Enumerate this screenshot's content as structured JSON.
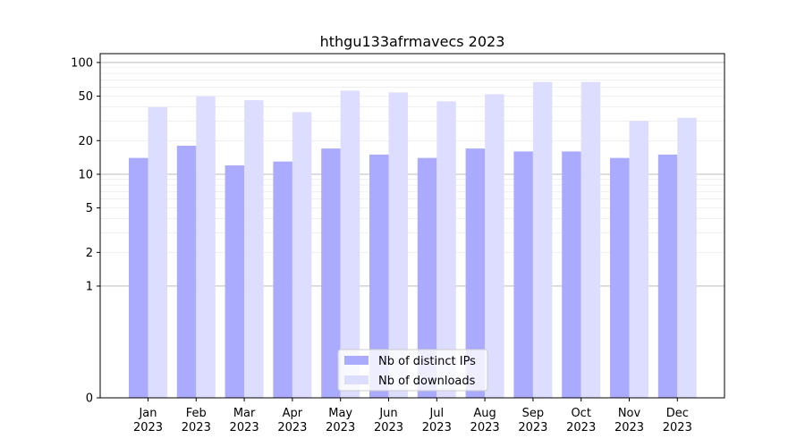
{
  "chart_data": {
    "type": "bar",
    "title": "hthgu133afrmavecs 2023",
    "xlabel": "",
    "ylabel": "",
    "yscale": "symlog",
    "ylim": [
      0,
      120
    ],
    "yticks": [
      "0",
      "1",
      "2",
      "5",
      "10",
      "20",
      "50",
      "100"
    ],
    "categories": [
      "Jan\n2023",
      "Feb\n2023",
      "Mar\n2023",
      "Apr\n2023",
      "May\n2023",
      "Jun\n2023",
      "Jul\n2023",
      "Aug\n2023",
      "Sep\n2023",
      "Oct\n2023",
      "Nov\n2023",
      "Dec\n2023"
    ],
    "series": [
      {
        "name": "Nb of distinct IPs",
        "color": "#aaaaff",
        "values": [
          14,
          18,
          12,
          13,
          17,
          15,
          14,
          17,
          16,
          16,
          14,
          15
        ]
      },
      {
        "name": "Nb of downloads",
        "color": "#ddddff",
        "values": [
          40,
          50,
          46,
          36,
          56,
          54,
          45,
          52,
          67,
          67,
          30,
          32
        ]
      }
    ],
    "legend_position": "bottom-center",
    "grid": true
  }
}
